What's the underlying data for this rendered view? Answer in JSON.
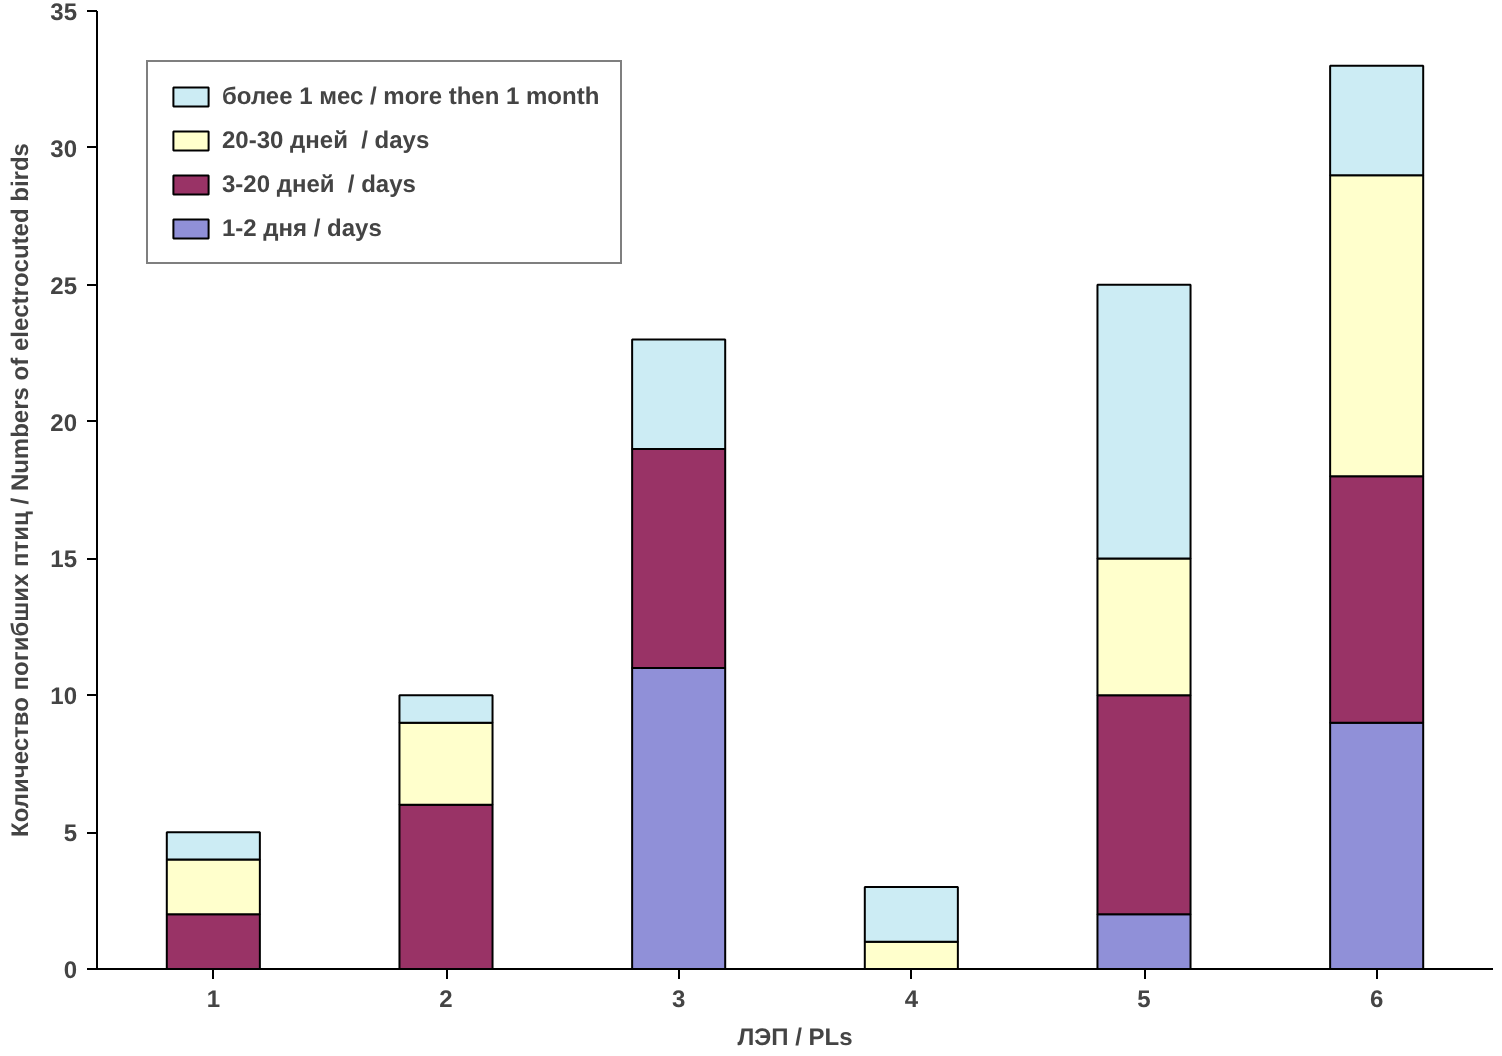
{
  "chart_data": {
    "type": "bar",
    "stacked": true,
    "xlabel": "ЛЭП / PLs",
    "ylabel": "Количество погибших птиц / Numbers of electrocuted birds",
    "categories": [
      "1",
      "2",
      "3",
      "4",
      "5",
      "6"
    ],
    "series": [
      {
        "name": "1-2 дня / days",
        "color": "#9090d8",
        "values": [
          0,
          0,
          11,
          0,
          2,
          9
        ]
      },
      {
        "name": "3-20 дней  / days",
        "color": "#993366",
        "values": [
          2,
          6,
          8,
          0,
          8,
          9
        ]
      },
      {
        "name": "20-30 дней  / days",
        "color": "#ffffcc",
        "values": [
          2,
          3,
          0,
          1,
          5,
          11
        ]
      },
      {
        "name": "более 1 мес / more then 1 month",
        "color": "#ccecf4",
        "values": [
          1,
          1,
          4,
          2,
          10,
          4
        ]
      }
    ],
    "ylim": [
      0,
      35
    ],
    "yticks": [
      0,
      5,
      10,
      15,
      20,
      25,
      30,
      35
    ],
    "grid": false,
    "legend": "top left"
  }
}
